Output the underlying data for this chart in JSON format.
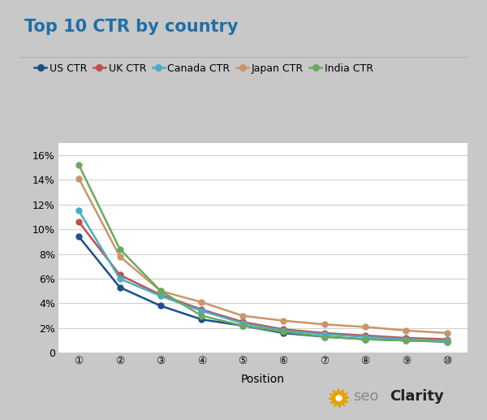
{
  "title": "Top 10 CTR by country",
  "xlabel": "Position",
  "positions": [
    1,
    2,
    3,
    4,
    5,
    6,
    7,
    8,
    9,
    10
  ],
  "series": [
    {
      "label": "US CTR",
      "color": "#1e4d8c",
      "values": [
        0.094,
        0.053,
        0.038,
        0.027,
        0.022,
        0.016,
        0.013,
        0.011,
        0.01,
        0.009
      ]
    },
    {
      "label": "UK CTR",
      "color": "#c0504d",
      "values": [
        0.106,
        0.063,
        0.047,
        0.035,
        0.025,
        0.019,
        0.016,
        0.014,
        0.012,
        0.011
      ]
    },
    {
      "label": "Canada CTR",
      "color": "#4bacc6",
      "values": [
        0.115,
        0.06,
        0.046,
        0.034,
        0.024,
        0.018,
        0.015,
        0.013,
        0.011,
        0.01
      ]
    },
    {
      "label": "Japan CTR",
      "color": "#c9956b",
      "values": [
        0.141,
        0.078,
        0.05,
        0.041,
        0.03,
        0.026,
        0.023,
        0.021,
        0.018,
        0.016
      ]
    },
    {
      "label": "India CTR",
      "color": "#6aaa5e",
      "values": [
        0.152,
        0.084,
        0.05,
        0.03,
        0.022,
        0.017,
        0.013,
        0.011,
        0.01,
        0.009
      ]
    }
  ],
  "ylim": [
    0,
    0.17
  ],
  "yticks": [
    0,
    0.02,
    0.04,
    0.06,
    0.08,
    0.1,
    0.12,
    0.14,
    0.16
  ],
  "ytick_labels": [
    "0",
    "2%",
    "4%",
    "6%",
    "8%",
    "10%",
    "12%",
    "14%",
    "16%"
  ],
  "outer_bg": "#c8c8c8",
  "inner_bg": "#ffffff",
  "plot_bg": "#ffffff",
  "grid_color": "#d0d0d0",
  "title_color": "#1e6fa8",
  "title_fontsize": 15,
  "axis_label_fontsize": 10,
  "tick_fontsize": 9,
  "legend_fontsize": 9,
  "marker_size": 5,
  "line_width": 1.8,
  "gear_color": "#e8a000",
  "seo_color": "#888888",
  "clarity_color": "#222222"
}
